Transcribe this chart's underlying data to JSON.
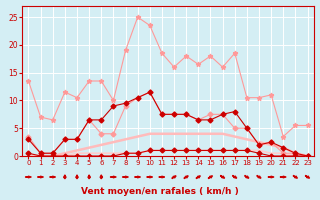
{
  "x": [
    0,
    1,
    2,
    3,
    4,
    5,
    6,
    7,
    8,
    9,
    10,
    11,
    12,
    13,
    14,
    15,
    16,
    17,
    18,
    19,
    20,
    21,
    22,
    23
  ],
  "series": [
    {
      "name": "rafales_light",
      "color": "#ff9999",
      "linewidth": 0.8,
      "marker": "*",
      "markersize": 3.5,
      "y": [
        13.5,
        7.0,
        6.5,
        11.5,
        10.5,
        13.5,
        13.5,
        10.0,
        19.0,
        25.0,
        23.5,
        18.5,
        16.0,
        18.0,
        16.5,
        18.0,
        16.0,
        18.5,
        10.5,
        10.5,
        11.0,
        3.5,
        5.5,
        5.5
      ]
    },
    {
      "name": "moyen_light",
      "color": "#ff9999",
      "linewidth": 0.8,
      "marker": "D",
      "markersize": 2.5,
      "y": [
        3.5,
        0.5,
        0.5,
        3.0,
        3.0,
        6.5,
        4.0,
        4.0,
        9.0,
        10.5,
        11.5,
        7.5,
        7.5,
        7.5,
        6.5,
        7.5,
        7.5,
        5.0,
        5.0,
        2.0,
        2.5,
        0.5,
        0.5,
        0.0
      ]
    },
    {
      "name": "line_flat1",
      "color": "#ffbbbb",
      "linewidth": 1.8,
      "marker": null,
      "markersize": 0,
      "y": [
        0.0,
        0.0,
        0.0,
        0.5,
        1.0,
        1.5,
        2.0,
        2.5,
        3.0,
        3.5,
        4.0,
        4.0,
        4.0,
        4.0,
        4.0,
        4.0,
        4.0,
        3.5,
        3.0,
        2.5,
        2.0,
        1.5,
        0.5,
        0.0
      ]
    },
    {
      "name": "line_flat2",
      "color": "#ffcccc",
      "linewidth": 1.2,
      "marker": null,
      "markersize": 0,
      "y": [
        0.0,
        0.0,
        0.0,
        0.0,
        0.5,
        0.5,
        0.5,
        0.5,
        0.5,
        0.5,
        1.0,
        1.0,
        1.0,
        1.0,
        1.0,
        1.0,
        1.0,
        1.0,
        1.0,
        1.0,
        0.5,
        0.5,
        0.0,
        0.0
      ]
    },
    {
      "name": "rafales_dark",
      "color": "#cc0000",
      "linewidth": 0.8,
      "marker": "D",
      "markersize": 2.5,
      "y": [
        3.0,
        0.5,
        0.5,
        3.0,
        3.0,
        6.5,
        6.5,
        9.0,
        9.5,
        10.5,
        11.5,
        7.5,
        7.5,
        7.5,
        6.5,
        6.5,
        7.5,
        8.0,
        5.0,
        2.0,
        2.5,
        1.5,
        0.5,
        0.0
      ]
    },
    {
      "name": "moyen_dark",
      "color": "#cc0000",
      "linewidth": 0.8,
      "marker": "D",
      "markersize": 2.5,
      "y": [
        0.5,
        0.0,
        0.0,
        0.0,
        0.0,
        0.0,
        0.0,
        0.0,
        0.5,
        0.5,
        1.0,
        1.0,
        1.0,
        1.0,
        1.0,
        1.0,
        1.0,
        1.0,
        1.0,
        0.5,
        0.0,
        0.0,
        0.0,
        0.0
      ]
    }
  ],
  "wind_dirs_deg": [
    270,
    270,
    270,
    0,
    0,
    0,
    0,
    270,
    270,
    270,
    270,
    270,
    225,
    225,
    225,
    225,
    315,
    315,
    315,
    315,
    270,
    270,
    315,
    315
  ],
  "xlabel": "Vent moyen/en rafales ( km/h )",
  "xlim": [
    -0.5,
    23.5
  ],
  "ylim": [
    0,
    27
  ],
  "yticks": [
    0,
    5,
    10,
    15,
    20,
    25
  ],
  "xticks": [
    0,
    1,
    2,
    3,
    4,
    5,
    6,
    7,
    8,
    9,
    10,
    11,
    12,
    13,
    14,
    15,
    16,
    17,
    18,
    19,
    20,
    21,
    22,
    23
  ],
  "bg_color": "#d4eef4",
  "grid_color": "#ffffff",
  "line_color": "#cc0000",
  "xlabel_color": "#cc0000",
  "tick_color": "#cc0000"
}
